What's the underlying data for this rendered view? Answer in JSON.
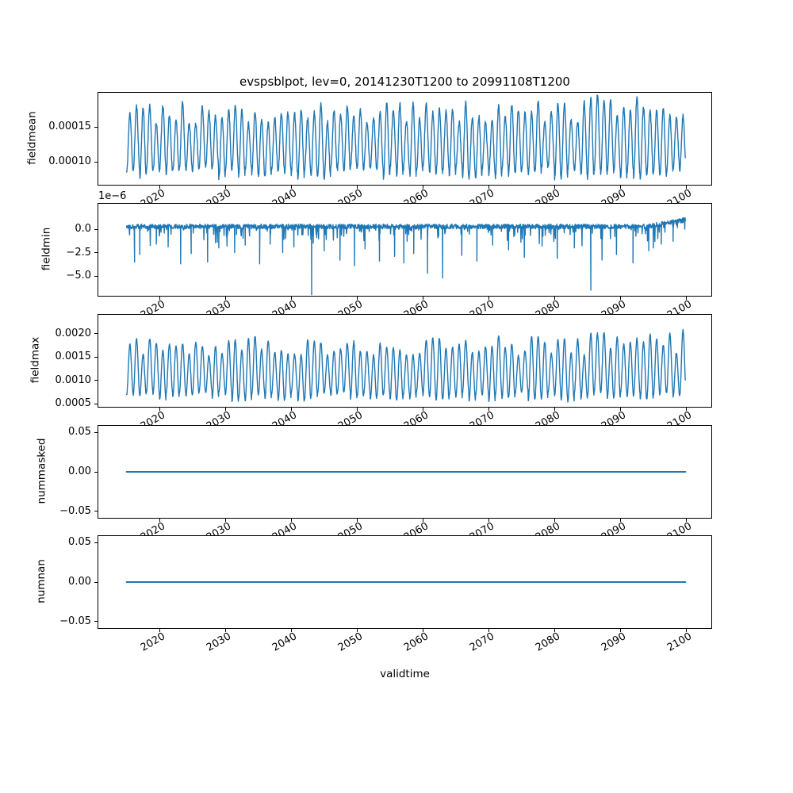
{
  "figure": {
    "title": "evspsblpot, lev=0, 20141230T1200 to 20991108T1200",
    "xlabel": "validtime",
    "background": "#ffffff",
    "line_color": "#1f77b4",
    "text_color": "#000000"
  },
  "x_axis": {
    "label": "validtime",
    "xlim": [
      2010.7,
      2103.8
    ],
    "xticks": [
      2020,
      2030,
      2040,
      2050,
      2060,
      2070,
      2080,
      2090,
      2100
    ],
    "xtick_labels": [
      "2020",
      "2030",
      "2040",
      "2050",
      "2060",
      "2070",
      "2080",
      "2090",
      "2100"
    ],
    "tick_rotation_deg": 30,
    "data_start_year": 2014.99,
    "data_end_year": 2099.87
  },
  "chart_data": [
    {
      "type": "line",
      "name": "fieldmean",
      "ylabel": "fieldmean",
      "ylim": [
        6.7e-05,
        0.000199
      ],
      "yticks": [
        {
          "value": 0.00015,
          "label": "0.00015"
        },
        {
          "value": 0.0001,
          "label": "0.00010"
        }
      ],
      "series": {
        "kind": "annual-oscillation",
        "period_years": 1,
        "peak_range": [
          0.000152,
          0.000186
        ],
        "trough_range": [
          7.6e-05,
          9.2e-05
        ],
        "late_peak_boost": 1.2e-05,
        "late_boost_after_year": 2084,
        "noise": 7e-06,
        "seed": 11
      }
    },
    {
      "type": "line",
      "name": "fieldmin",
      "ylabel": "fieldmin",
      "offset_text": "1e−6",
      "ylim": [
        -7.1e-06,
        2.7e-06
      ],
      "yticks": [
        {
          "value": 0.0,
          "label": "0.0"
        },
        {
          "value": -2.5e-06,
          "label": "−2.5"
        },
        {
          "value": -5e-06,
          "label": "−5.0"
        }
      ],
      "series": {
        "kind": "noisy-baseline-with-downward-spikes",
        "baseline": 2.8e-07,
        "baseline_noise": 5e-07,
        "end_rise_after_year": 2094,
        "minor_spike_prob": 0.13,
        "minor_spike_max": -2.2e-06,
        "major_spikes_year_depth1e6": [
          [
            2016.2,
            -3.5
          ],
          [
            2017.0,
            -2.7
          ],
          [
            2019.5,
            -1.6
          ],
          [
            2021.3,
            -1.9
          ],
          [
            2023.2,
            -3.7
          ],
          [
            2024.8,
            -2.6
          ],
          [
            2027.3,
            -3.5
          ],
          [
            2029.0,
            -2.0
          ],
          [
            2031.4,
            -2.5
          ],
          [
            2033.0,
            -1.7
          ],
          [
            2035.2,
            -3.7
          ],
          [
            2036.8,
            -1.6
          ],
          [
            2038.7,
            -2.5
          ],
          [
            2040.4,
            -1.9
          ],
          [
            2043.1,
            -7.0
          ],
          [
            2045.0,
            -2.3
          ],
          [
            2047.4,
            -3.3
          ],
          [
            2049.6,
            -3.9
          ],
          [
            2051.2,
            -2.1
          ],
          [
            2053.4,
            -3.4
          ],
          [
            2055.7,
            -2.9
          ],
          [
            2057.1,
            -3.6
          ],
          [
            2058.6,
            -2.6
          ],
          [
            2060.7,
            -4.7
          ],
          [
            2063.0,
            -5.2
          ],
          [
            2065.9,
            -2.8
          ],
          [
            2068.2,
            -3.4
          ],
          [
            2070.6,
            -1.7
          ],
          [
            2073.0,
            -2.2
          ],
          [
            2075.4,
            -3.0
          ],
          [
            2078.1,
            -1.8
          ],
          [
            2080.4,
            -3.1
          ],
          [
            2083.0,
            -2.0
          ],
          [
            2085.5,
            -6.5
          ],
          [
            2087.2,
            -3.3
          ],
          [
            2089.4,
            -2.7
          ],
          [
            2091.9,
            -3.6
          ],
          [
            2094.3,
            -2.3
          ],
          [
            2096.2,
            -1.6
          ],
          [
            2098.0,
            -1.3
          ]
        ],
        "seed": 22
      }
    },
    {
      "type": "line",
      "name": "fieldmax",
      "ylabel": "fieldmax",
      "ylim": [
        0.00044,
        0.0024
      ],
      "yticks": [
        {
          "value": 0.002,
          "label": "0.0020"
        },
        {
          "value": 0.0015,
          "label": "0.0015"
        },
        {
          "value": 0.001,
          "label": "0.0010"
        },
        {
          "value": 0.0005,
          "label": "0.0005"
        }
      ],
      "series": {
        "kind": "annual-oscillation",
        "period_years": 1,
        "peak_range": [
          0.00152,
          0.00197
        ],
        "trough_range": [
          0.00054,
          0.00076
        ],
        "late_peak_boost": 0.00022,
        "late_boost_after_year": 2080,
        "noise": 4e-05,
        "seed": 33
      }
    },
    {
      "type": "line",
      "name": "nummasked",
      "ylabel": "nummasked",
      "ylim": [
        -0.0583,
        0.0583
      ],
      "yticks": [
        {
          "value": 0.05,
          "label": "0.05"
        },
        {
          "value": 0.0,
          "label": "0.00"
        },
        {
          "value": -0.05,
          "label": "−0.05"
        }
      ],
      "series": {
        "kind": "constant",
        "value": 0.0
      }
    },
    {
      "type": "line",
      "name": "numnan",
      "ylabel": "numnan",
      "ylim": [
        -0.0583,
        0.0583
      ],
      "yticks": [
        {
          "value": 0.05,
          "label": "0.05"
        },
        {
          "value": 0.0,
          "label": "0.00"
        },
        {
          "value": -0.05,
          "label": "−0.05"
        }
      ],
      "series": {
        "kind": "constant",
        "value": 0.0
      }
    }
  ]
}
